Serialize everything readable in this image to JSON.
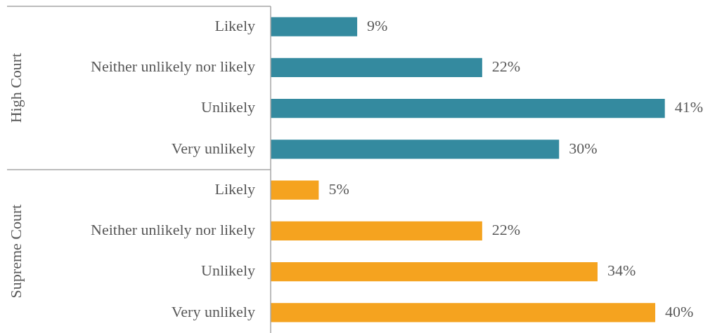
{
  "chart_data": {
    "type": "bar",
    "orientation": "horizontal",
    "categories": [
      "Likely",
      "Neither unlikely nor likely",
      "Unlikely",
      "Very unlikely",
      "Likely",
      "Neither unlikely nor likely",
      "Unlikely",
      "Very unlikely"
    ],
    "values": [
      9,
      22,
      41,
      30,
      5,
      22,
      34,
      40
    ],
    "colors": [
      "#348a9f",
      "#348a9f",
      "#348a9f",
      "#348a9f",
      "#f5a31f",
      "#f5a31f",
      "#f5a31f",
      "#f5a31f"
    ],
    "value_labels": [
      "9%",
      "22%",
      "41%",
      "30%",
      "5%",
      "22%",
      "34%",
      "40%"
    ],
    "annotations": [
      "High Court",
      "Supreme Court"
    ],
    "legend": false
  }
}
